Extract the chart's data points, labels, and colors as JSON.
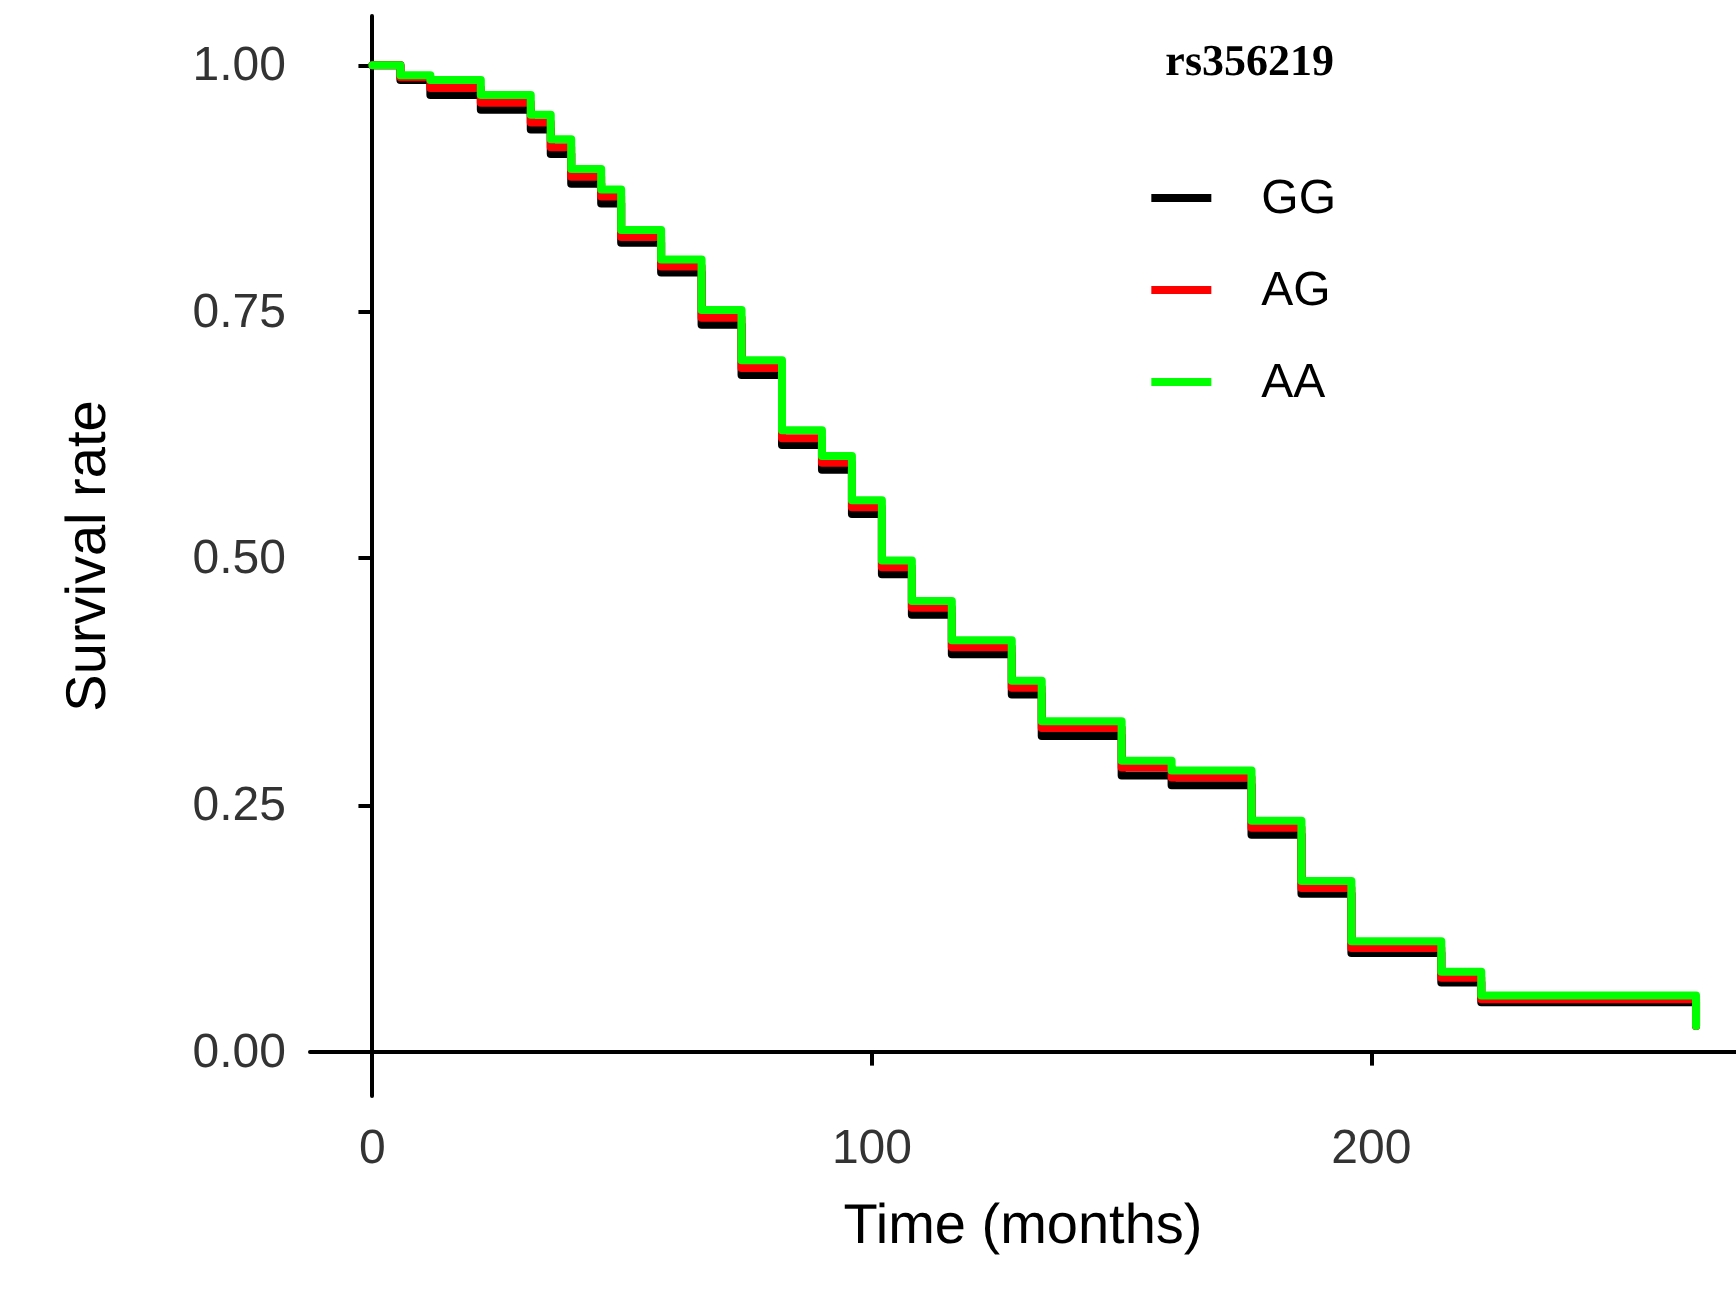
{
  "chart_data": {
    "type": "step",
    "legend_title": "rs356219",
    "xlabel": "Time (months)",
    "ylabel": "Survival rate",
    "xlim": [
      -12.5,
      273
    ],
    "ylim": [
      -0.045,
      1.05
    ],
    "xticks": [
      0,
      100,
      200
    ],
    "yticks": [
      {
        "value": 0,
        "label": "0.00"
      },
      {
        "value": 0.25,
        "label": "0.25"
      },
      {
        "value": 0.5,
        "label": "0.50"
      },
      {
        "value": 0.75,
        "label": "0.75"
      },
      {
        "value": 1,
        "label": "1.00"
      }
    ],
    "grid": false,
    "legend": "top right",
    "marker": "none",
    "line_style": "solid",
    "x": [
      0,
      5.6,
      11.6,
      21.7,
      31.7,
      35.7,
      39.8,
      45.8,
      49.8,
      57.8,
      65.9,
      73.9,
      82,
      90,
      96,
      102,
      108,
      116,
      122,
      128,
      134,
      144,
      150,
      160,
      168,
      176,
      186,
      196,
      206,
      214,
      222,
      263,
      265
    ],
    "series": [
      {
        "name": "GG",
        "color": "#000000",
        "values": [
          1.0,
          0.985,
          0.97,
          0.955,
          0.935,
          0.91,
          0.88,
          0.86,
          0.82,
          0.79,
          0.737,
          0.686,
          0.615,
          0.59,
          0.545,
          0.484,
          0.443,
          0.403,
          0.403,
          0.362,
          0.32,
          0.32,
          0.28,
          0.27,
          0.27,
          0.22,
          0.16,
          0.1,
          0.1,
          0.07,
          0.05,
          0.05,
          0.026
        ]
      },
      {
        "name": "AG",
        "color": "#ff0000",
        "values": [
          1.0,
          0.988,
          0.977,
          0.962,
          0.942,
          0.917,
          0.887,
          0.867,
          0.826,
          0.796,
          0.744,
          0.693,
          0.622,
          0.597,
          0.552,
          0.491,
          0.45,
          0.41,
          0.41,
          0.369,
          0.328,
          0.328,
          0.288,
          0.278,
          0.278,
          0.227,
          0.166,
          0.105,
          0.105,
          0.075,
          0.053,
          0.053,
          0.026
        ]
      },
      {
        "name": "AA",
        "color": "#00ff00",
        "values": [
          1.0,
          0.99,
          0.985,
          0.97,
          0.95,
          0.925,
          0.895,
          0.874,
          0.833,
          0.803,
          0.752,
          0.701,
          0.63,
          0.604,
          0.559,
          0.498,
          0.457,
          0.417,
          0.417,
          0.376,
          0.335,
          0.335,
          0.295,
          0.285,
          0.285,
          0.234,
          0.173,
          0.112,
          0.112,
          0.081,
          0.057,
          0.057,
          0.026
        ]
      }
    ]
  }
}
